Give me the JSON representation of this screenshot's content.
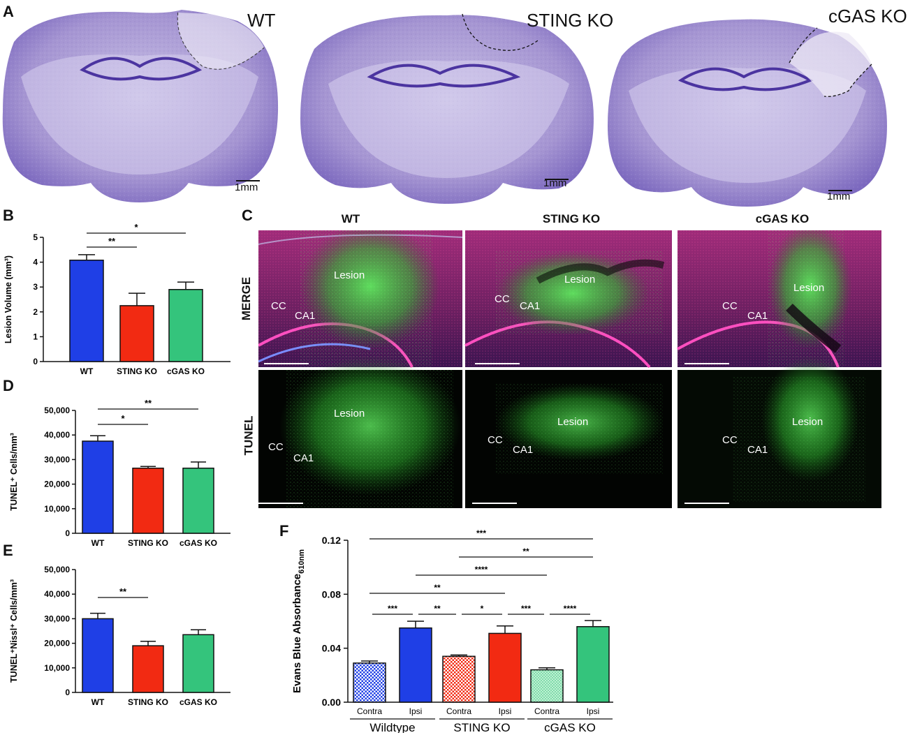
{
  "panels": {
    "a": {
      "label": "A",
      "sections": [
        {
          "title": "WT",
          "scale": "1mm"
        },
        {
          "title": "STING KO",
          "scale": "1mm"
        },
        {
          "title": "cGAS KO",
          "scale": "1mm"
        }
      ]
    },
    "c": {
      "label": "C",
      "columns": [
        "WT",
        "STING KO",
        "cGAS KO"
      ],
      "rows": [
        "MERGE",
        "TUNEL"
      ],
      "annotations": {
        "lesion": "Lesion",
        "cc": "CC",
        "ca1": "CA1"
      }
    },
    "b": {
      "label": "B"
    },
    "d": {
      "label": "D"
    },
    "e": {
      "label": "E"
    },
    "f": {
      "label": "F"
    }
  },
  "colors": {
    "wt": "#1f3fe6",
    "sting": "#f22a12",
    "cgas": "#34c47c",
    "nissl": "#8a78c4",
    "tunel": "#3fd13f",
    "merge_bg": "#5a1650"
  },
  "chart_data": [
    {
      "id": "B",
      "type": "bar",
      "categories": [
        "WT",
        "STING KO",
        "cGAS KO"
      ],
      "values": [
        4.08,
        2.25,
        2.9
      ],
      "errors": [
        0.22,
        0.5,
        0.3
      ],
      "ylabel": "Lesion Volume (mm³)",
      "ylim": [
        0,
        5
      ],
      "yticks": [
        "0",
        "1",
        "2",
        "3",
        "4",
        "5"
      ],
      "significance": [
        {
          "from": 0,
          "to": 1,
          "label": "**"
        },
        {
          "from": 0,
          "to": 2,
          "label": "*"
        }
      ]
    },
    {
      "id": "D",
      "type": "bar",
      "categories": [
        "WT",
        "STING KO",
        "cGAS KO"
      ],
      "values": [
        37500,
        26500,
        26500
      ],
      "errors": [
        2200,
        700,
        2500
      ],
      "ylabel": "TUNEL⁺ Cells/mm³",
      "ylim": [
        0,
        50000
      ],
      "yticks": [
        "0",
        "10,000",
        "20,000",
        "30,000",
        "40,000",
        "50,000"
      ],
      "significance": [
        {
          "from": 0,
          "to": 1,
          "label": "*"
        },
        {
          "from": 0,
          "to": 2,
          "label": "**"
        }
      ]
    },
    {
      "id": "E",
      "type": "bar",
      "categories": [
        "WT",
        "STING KO",
        "cGAS KO"
      ],
      "values": [
        30000,
        19000,
        23500
      ],
      "errors": [
        2200,
        1800,
        2000
      ],
      "ylabel": "TUNEL⁺Nissl⁺ Cells/mm³",
      "ylim": [
        0,
        50000
      ],
      "yticks": [
        "0",
        "10,000",
        "20,000",
        "30,000",
        "40,000",
        "50,000"
      ],
      "significance": [
        {
          "from": 0,
          "to": 1,
          "label": "**"
        }
      ]
    },
    {
      "id": "F",
      "type": "bar",
      "categories": [
        "Contra",
        "Ipsi",
        "Contra",
        "Ipsi",
        "Contra",
        "Ipsi"
      ],
      "groups": [
        "Wildtype",
        "STING KO",
        "cGAS KO"
      ],
      "values": [
        0.029,
        0.055,
        0.034,
        0.051,
        0.024,
        0.056
      ],
      "errors": [
        0.0015,
        0.005,
        0.001,
        0.0055,
        0.0015,
        0.0045
      ],
      "ylabel": "Evans Blue Absorbance",
      "ylabel_sub": "610nm",
      "ylim": [
        0,
        0.12
      ],
      "yticks": [
        "0.00",
        "0.04",
        "0.08",
        "0.12"
      ],
      "significance": [
        {
          "from": 0,
          "to": 5,
          "label": "***"
        },
        {
          "from": 2,
          "to": 5,
          "label": "**"
        },
        {
          "from": 1,
          "to": 4,
          "label": "****"
        },
        {
          "from": 0,
          "to": 3,
          "label": "**"
        },
        {
          "from": 0,
          "to": 1,
          "label": "***"
        },
        {
          "from": 1,
          "to": 2,
          "label": "**"
        },
        {
          "from": 2,
          "to": 3,
          "label": "*"
        },
        {
          "from": 3,
          "to": 4,
          "label": "***"
        },
        {
          "from": 4,
          "to": 5,
          "label": "****"
        }
      ]
    }
  ]
}
